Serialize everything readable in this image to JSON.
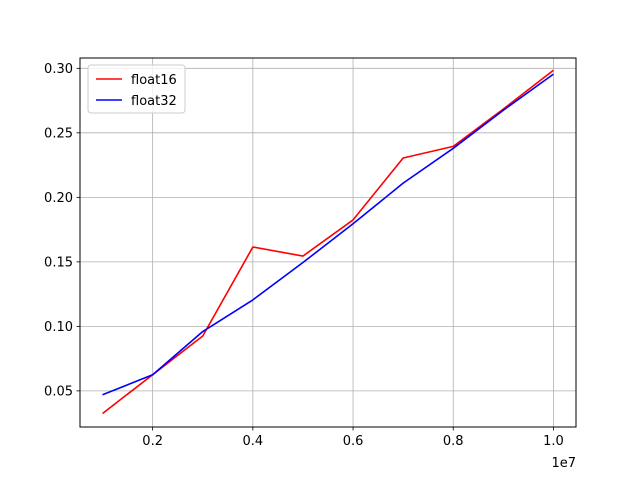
{
  "chart_data": {
    "type": "line",
    "title": "",
    "xlabel": "",
    "ylabel": "",
    "x_offset_label": "1e7",
    "xlim": [
      0.055,
      1.045
    ],
    "ylim": [
      0.022,
      0.308
    ],
    "grid": true,
    "legend_position": "top-left",
    "x": [
      0.1,
      0.2,
      0.3,
      0.4,
      0.5,
      0.6,
      0.7,
      0.8,
      0.9,
      1.0
    ],
    "x_ticks": [
      0.2,
      0.4,
      0.6,
      0.8,
      1.0
    ],
    "x_tick_labels": [
      "0.2",
      "0.4",
      "0.6",
      "0.8",
      "1.0"
    ],
    "y_ticks": [
      0.05,
      0.1,
      0.15,
      0.2,
      0.25,
      0.3
    ],
    "y_tick_labels": [
      "0.05",
      "0.10",
      "0.15",
      "0.20",
      "0.25",
      "0.30"
    ],
    "series": [
      {
        "name": "float16",
        "color": "#ff0000",
        "values": [
          0.0325,
          0.0625,
          0.0925,
          0.1615,
          0.1545,
          0.1825,
          0.2305,
          0.2395,
          0.2685,
          0.2985
        ]
      },
      {
        "name": "float32",
        "color": "#0000ff",
        "values": [
          0.047,
          0.0625,
          0.096,
          0.1205,
          0.1495,
          0.1795,
          0.211,
          0.238,
          0.2675,
          0.2955
        ]
      }
    ]
  }
}
